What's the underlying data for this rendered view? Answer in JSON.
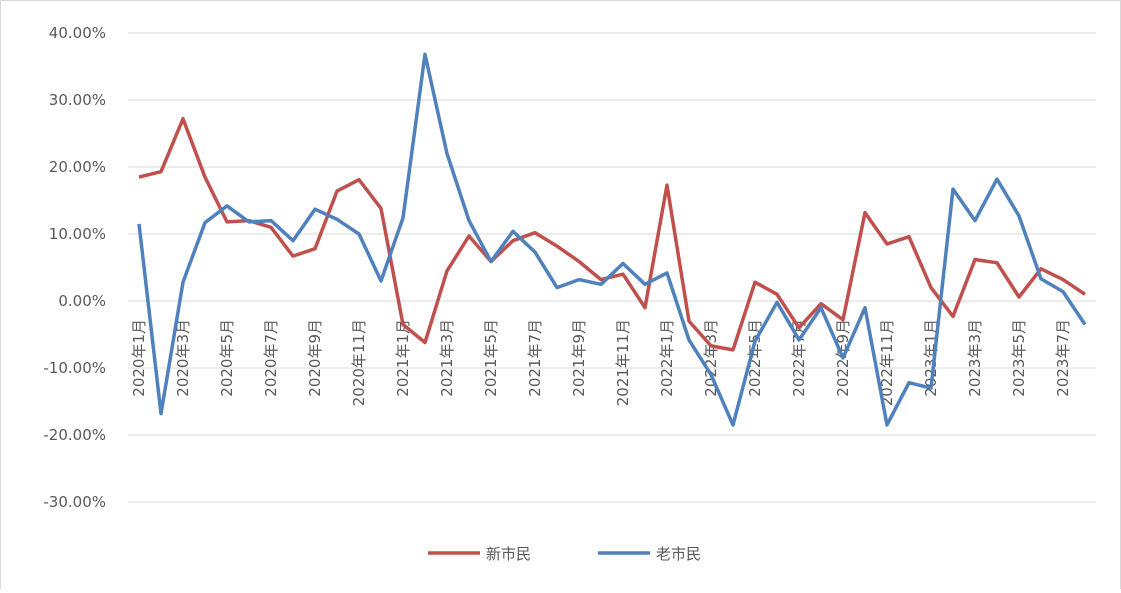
{
  "chart_data": {
    "type": "line",
    "categories": [
      "2020年1月",
      null,
      "2020年3月",
      null,
      "2020年5月",
      null,
      "2020年7月",
      null,
      "2020年9月",
      null,
      "2020年11月",
      null,
      "2021年1月",
      null,
      "2021年3月",
      null,
      "2021年5月",
      null,
      "2021年7月",
      null,
      "2021年9月",
      null,
      "2021年11月",
      null,
      "2022年1月",
      null,
      "2022年3月",
      null,
      "2022年5月",
      null,
      "2022年7月",
      null,
      "2022年9月",
      null,
      "2022年11月",
      null,
      "2023年1月",
      null,
      "2023年3月",
      null,
      "2023年5月",
      null,
      "2023年7月",
      null
    ],
    "series": [
      {
        "name": "新市民",
        "color": "#c0504d",
        "values": [
          18.5,
          19.3,
          27.2,
          18.5,
          11.8,
          12.0,
          11.0,
          6.7,
          7.8,
          16.4,
          18.1,
          13.8,
          -3.5,
          -6.2,
          4.5,
          9.7,
          5.9,
          9.0,
          10.2,
          8.2,
          5.9,
          3.2,
          4.0,
          -1.0,
          17.3,
          -3.0,
          -6.7,
          -7.3,
          2.8,
          1.0,
          -4.0,
          -0.4,
          -2.8,
          13.2,
          8.5,
          9.6,
          2.0,
          -2.3,
          6.2,
          5.7,
          0.6,
          4.8,
          3.2,
          1.0
        ]
      },
      {
        "name": "老市民",
        "color": "#4f81bd",
        "values": [
          11.5,
          -16.8,
          2.8,
          11.7,
          14.2,
          11.8,
          12.0,
          9.0,
          13.7,
          12.2,
          10.0,
          3.0,
          12.4,
          36.8,
          22.0,
          12.0,
          5.9,
          10.4,
          7.3,
          2.0,
          3.2,
          2.5,
          5.6,
          2.5,
          4.2,
          -5.8,
          -11.0,
          -18.5,
          -6.0,
          -0.2,
          -5.8,
          -1.0,
          -8.5,
          -1.0,
          -18.5,
          -12.2,
          -13.0,
          16.7,
          12.0,
          18.2,
          12.7,
          3.3,
          1.4,
          -3.5
        ]
      }
    ],
    "ylim": [
      -30,
      40
    ],
    "yticks": [
      {
        "value": -30,
        "label": "-30.00%"
      },
      {
        "value": -20,
        "label": "-20.00%"
      },
      {
        "value": -10,
        "label": "-10.00%"
      },
      {
        "value": 0,
        "label": "0.00%"
      },
      {
        "value": 10,
        "label": "10.00%"
      },
      {
        "value": 20,
        "label": "20.00%"
      },
      {
        "value": 30,
        "label": "30.00%"
      },
      {
        "value": 40,
        "label": "40.00%"
      }
    ],
    "grid": true,
    "legend": "bottom"
  }
}
